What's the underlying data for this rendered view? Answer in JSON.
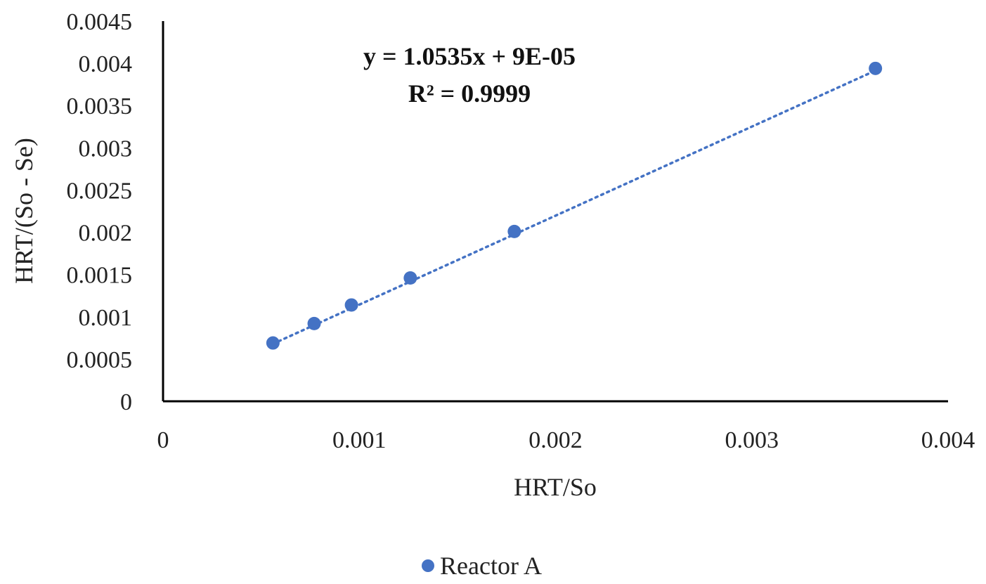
{
  "chart_data": {
    "type": "scatter",
    "xlabel": "HRT/So",
    "ylabel": "HRT/(So - Se)",
    "xlim": [
      0,
      0.004
    ],
    "ylim": [
      0,
      0.0045
    ],
    "x_ticks": [
      "0",
      "0.001",
      "0.002",
      "0.003",
      "0.004"
    ],
    "x_tick_values": [
      0,
      0.001,
      0.002,
      0.003,
      0.004
    ],
    "y_ticks": [
      "0",
      "0.0005",
      "0.001",
      "0.0015",
      "0.002",
      "0.0025",
      "0.003",
      "0.0035",
      "0.004",
      "0.0045"
    ],
    "y_tick_values": [
      0,
      0.0005,
      0.001,
      0.0015,
      0.002,
      0.0025,
      0.003,
      0.0035,
      0.004,
      0.0045
    ],
    "grid": false,
    "legend_position": "bottom",
    "series": [
      {
        "name": "Reactor A",
        "color": "#4472C4",
        "x": [
          0.00056,
          0.00077,
          0.00096,
          0.00126,
          0.00179,
          0.00363
        ],
        "y": [
          0.00069,
          0.00092,
          0.00114,
          0.00146,
          0.00201,
          0.00394
        ]
      }
    ],
    "trendline": {
      "type": "linear",
      "style": "dotted",
      "color": "#4472C4",
      "slope": 1.0535,
      "intercept": 9e-05,
      "x_range": [
        0.00056,
        0.00363
      ]
    },
    "annotations": {
      "equation": "y = 1.0535x + 9E-05",
      "r_squared": "R² = 0.9999"
    }
  }
}
